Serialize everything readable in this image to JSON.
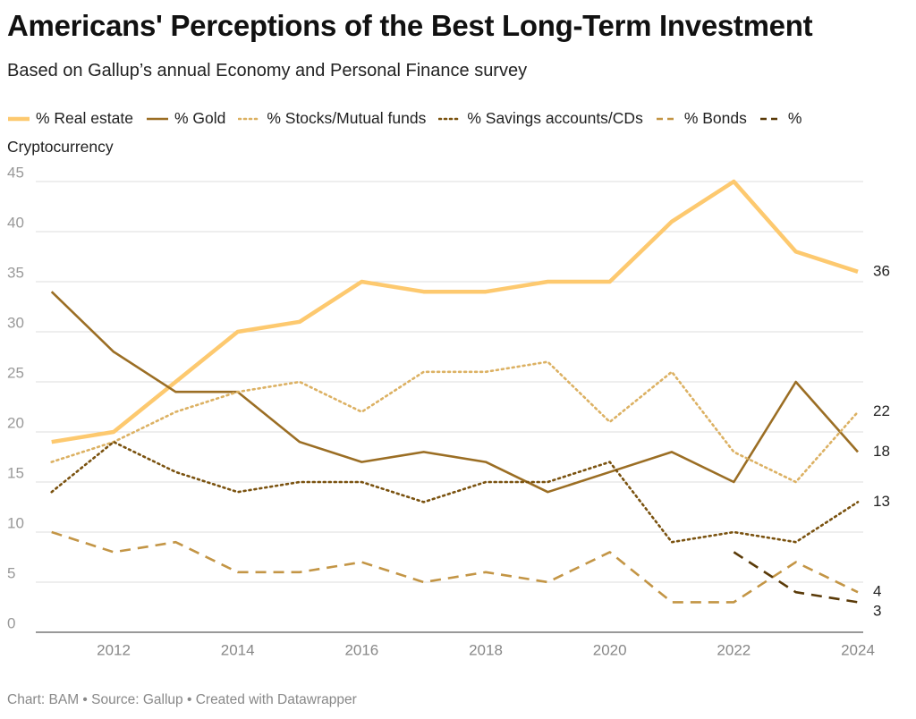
{
  "chart_data": {
    "type": "line",
    "title": "Americans' Perceptions of the Best Long-Term Investment",
    "subtitle": "Based on Gallup’s annual Economy and Personal Finance survey",
    "footer": "Chart: BAM • Source: Gallup • Created with Datawrapper",
    "x": [
      2011,
      2012,
      2013,
      2014,
      2015,
      2016,
      2017,
      2018,
      2019,
      2020,
      2021,
      2022,
      2023,
      2024
    ],
    "xlim": [
      2011,
      2024
    ],
    "xticks": [
      2012,
      2014,
      2016,
      2018,
      2020,
      2022,
      2024
    ],
    "ylim": [
      0,
      45
    ],
    "yticks": [
      0,
      5,
      10,
      15,
      20,
      25,
      30,
      35,
      40,
      45
    ],
    "grid": true,
    "end_labels": true,
    "series": [
      {
        "name": "% Real estate",
        "color": "#fdc96f",
        "line_style": "solid",
        "values": [
          19,
          20,
          25,
          30,
          31,
          35,
          34,
          34,
          35,
          35,
          41,
          45,
          38,
          36
        ]
      },
      {
        "name": "% Gold",
        "color": "#9b6e24",
        "line_style": "solid",
        "values": [
          34,
          28,
          24,
          24,
          19,
          17,
          18,
          17,
          14,
          16,
          18,
          15,
          25,
          18
        ]
      },
      {
        "name": "% Stocks/Mutual funds",
        "color": "#dcb163",
        "line_style": "dotted",
        "values": [
          17,
          19,
          22,
          24,
          25,
          22,
          26,
          26,
          27,
          21,
          26,
          18,
          15,
          22
        ]
      },
      {
        "name": "% Savings accounts/CDs",
        "color": "#7a520f",
        "line_style": "dotted",
        "values": [
          14,
          19,
          16,
          14,
          15,
          15,
          13,
          15,
          15,
          17,
          9,
          10,
          9,
          13
        ]
      },
      {
        "name": "% Bonds",
        "color": "#c39545",
        "line_style": "dashed",
        "values": [
          10,
          8,
          9,
          6,
          6,
          7,
          5,
          6,
          5,
          8,
          3,
          3,
          7,
          4
        ]
      },
      {
        "name": "% Cryptocurrency",
        "color": "#5a3a08",
        "line_style": "dashed",
        "values": [
          null,
          null,
          null,
          null,
          null,
          null,
          null,
          null,
          null,
          null,
          null,
          8,
          4,
          3
        ]
      }
    ]
  }
}
